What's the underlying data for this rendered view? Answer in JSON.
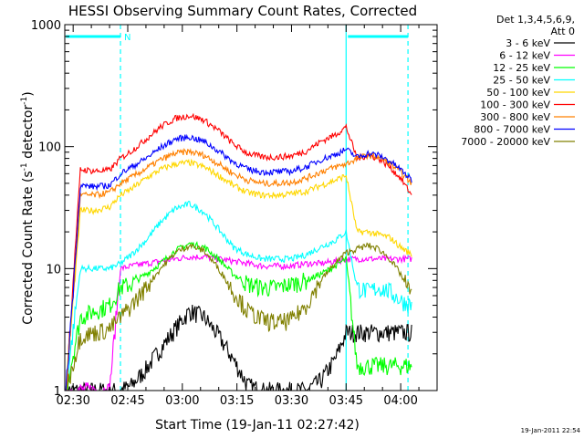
{
  "chart_data": {
    "type": "line",
    "title": "HESSI Observing Summary Count Rates, Corrected",
    "xlabel": "Start Time (19-Jan-11 02:27:42)",
    "ylabel_main": "Corrected Count Rate (s",
    "ylabel_sup1": "-1",
    "ylabel_mid": " detector",
    "ylabel_sup2": "-1",
    "ylabel_end": ")",
    "yscale": "log",
    "ylim": [
      1,
      1000
    ],
    "xlim_minutes": [
      147.7,
      250.0
    ],
    "x_ticks": [
      {
        "label": "02:30",
        "minute": 150
      },
      {
        "label": "02:45",
        "minute": 165
      },
      {
        "label": "03:00",
        "minute": 180
      },
      {
        "label": "03:15",
        "minute": 195
      },
      {
        "label": "03:30",
        "minute": 210
      },
      {
        "label": "03:45",
        "minute": 225
      },
      {
        "label": "04:00",
        "minute": 240
      }
    ],
    "y_ticks": [
      {
        "label": "1",
        "value": 1
      },
      {
        "label": "10",
        "value": 10
      },
      {
        "label": "100",
        "value": 100
      },
      {
        "label": "1000",
        "value": 1000
      }
    ],
    "legend": {
      "position": "right",
      "header_line1": "Det 1,3,4,5,6,9,",
      "header_line2": "Att 0"
    },
    "flag": {
      "label": "N",
      "start_minute": 148,
      "end_minute": 163,
      "value": 800
    },
    "flag2": {
      "start_minute": 225.5,
      "end_minute": 242,
      "value": 800
    },
    "markers": [
      {
        "minute": 163,
        "style": "dashed"
      },
      {
        "minute": 225,
        "style": "solid"
      },
      {
        "minute": 242,
        "style": "dashed"
      }
    ],
    "times": [
      148,
      152,
      156,
      160,
      163,
      166,
      170,
      174,
      178,
      182,
      186,
      190,
      194,
      198,
      202,
      206,
      210,
      214,
      218,
      222,
      225,
      228,
      231,
      234,
      237,
      240,
      243
    ],
    "series": [
      {
        "name": "3 - 6 keV",
        "color": "#000000",
        "values": [
          1.0,
          1.0,
          1.0,
          1.0,
          1.0,
          1.1,
          1.5,
          2.2,
          3.2,
          4.5,
          4.0,
          2.8,
          1.8,
          1.1,
          1.0,
          1.0,
          1.0,
          1.0,
          1.2,
          1.8,
          3.0,
          3.0,
          3.0,
          3.0,
          3.0,
          3.0,
          3.0
        ]
      },
      {
        "name": "6 - 12 keV",
        "color": "#ff00ff",
        "values": [
          1.0,
          1.0,
          1.0,
          1.0,
          10.0,
          10.5,
          11.0,
          11.5,
          12.0,
          12.5,
          12.5,
          12.0,
          11.5,
          11.0,
          10.5,
          10.5,
          10.5,
          11.0,
          11.0,
          11.5,
          12.0,
          12.0,
          12.0,
          12.0,
          12.0,
          12.0,
          12.0
        ]
      },
      {
        "name": "12 - 25 keV",
        "color": "#00ff00",
        "values": [
          1.0,
          4.0,
          4.5,
          5.0,
          7.0,
          7.5,
          9.0,
          11.0,
          14.0,
          16.0,
          15.0,
          12.0,
          9.0,
          7.5,
          7.0,
          7.0,
          7.5,
          8.0,
          9.0,
          10.5,
          12.0,
          1.6,
          1.6,
          1.6,
          1.6,
          1.6,
          1.6
        ]
      },
      {
        "name": "25 - 50 keV",
        "color": "#00ffff",
        "values": [
          1.0,
          10.0,
          10.0,
          10.0,
          11.0,
          13.0,
          17.0,
          24.0,
          31.0,
          34.0,
          29.0,
          21.0,
          15.0,
          13.0,
          12.0,
          12.0,
          12.0,
          13.0,
          15.0,
          17.0,
          20.0,
          7.0,
          6.5,
          7.0,
          6.5,
          5.5,
          5.0
        ]
      },
      {
        "name": "50 - 100 keV",
        "color": "#ffd700",
        "values": [
          1.0,
          30.0,
          30.0,
          32.0,
          40.0,
          45.0,
          55.0,
          65.0,
          72.0,
          74.0,
          68.0,
          58.0,
          48.0,
          42.0,
          40.0,
          40.0,
          41.0,
          43.0,
          48.0,
          53.0,
          58.0,
          20.0,
          20.0,
          19.0,
          18.0,
          15.0,
          13.0
        ]
      },
      {
        "name": "100 - 300 keV",
        "color": "#ff0000",
        "values": [
          1.0,
          65.0,
          63.0,
          64.0,
          80.0,
          92.0,
          115.0,
          145.0,
          170.0,
          180.0,
          165.0,
          135.0,
          105.0,
          88.0,
          82.0,
          82.0,
          84.0,
          92.0,
          110.0,
          125.0,
          145.0,
          80.0,
          85.0,
          80.0,
          68.0,
          55.0,
          40.0
        ]
      },
      {
        "name": "300 - 800 keV",
        "color": "#ff8000",
        "values": [
          1.0,
          40.0,
          40.0,
          42.0,
          50.0,
          56.0,
          66.0,
          78.0,
          88.0,
          91.0,
          85.0,
          72.0,
          60.0,
          53.0,
          50.0,
          50.0,
          51.0,
          55.0,
          62.0,
          68.0,
          72.0,
          80.0,
          85.0,
          82.0,
          73.0,
          62.0,
          50.0
        ]
      },
      {
        "name": "800 - 7000 keV",
        "color": "#0000ff",
        "values": [
          1.0,
          48.0,
          47.0,
          48.0,
          60.0,
          68.0,
          80.0,
          98.0,
          115.0,
          120.0,
          110.0,
          92.0,
          75.0,
          65.0,
          62.0,
          62.0,
          63.0,
          68.0,
          78.0,
          86.0,
          95.0,
          82.0,
          88.0,
          85.0,
          76.0,
          65.0,
          53.0
        ]
      },
      {
        "name": "7000 - 20000 keV",
        "color": "#808000",
        "values": [
          1.0,
          2.8,
          3.0,
          3.2,
          4.0,
          5.0,
          7.0,
          10.0,
          13.5,
          15.5,
          14.0,
          10.0,
          6.5,
          4.5,
          3.8,
          3.6,
          3.8,
          5.0,
          8.0,
          11.0,
          13.5,
          14.5,
          15.5,
          14.5,
          12.0,
          9.0,
          6.0
        ]
      }
    ]
  },
  "footer": {
    "timestamp": "19-Jan-2011 22:54"
  }
}
